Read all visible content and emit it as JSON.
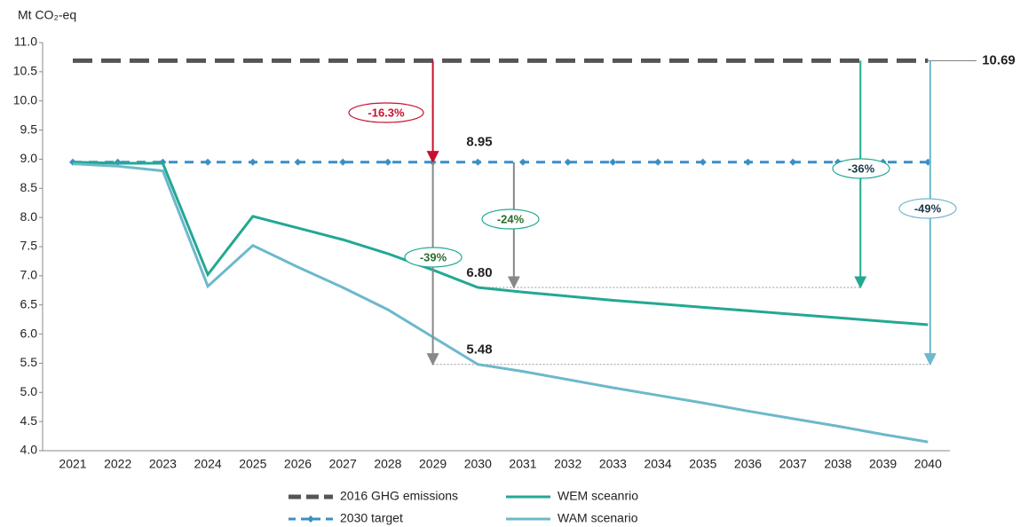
{
  "chart_data": {
    "type": "line",
    "y_label": "Mt CO₂-eq",
    "categories": [
      "2021",
      "2022",
      "2023",
      "2024",
      "2025",
      "2026",
      "2027",
      "2028",
      "2029",
      "2030",
      "2031",
      "2032",
      "2033",
      "2034",
      "2035",
      "2036",
      "2037",
      "2038",
      "2039",
      "2040"
    ],
    "ylim": [
      4,
      11
    ],
    "yticks": [
      {
        "value": 4,
        "label": "4.0"
      },
      4.5,
      {
        "value": 5,
        "label": "5.0"
      },
      5.5,
      {
        "value": 6,
        "label": "6.0"
      },
      6.5,
      {
        "value": 7,
        "label": "7.0"
      },
      7.5,
      {
        "value": 8,
        "label": "8.0"
      },
      8.5,
      {
        "value": 9,
        "label": "9.0"
      },
      9.5,
      {
        "value": 10,
        "label": "10.0"
      },
      10.5,
      {
        "value": 11,
        "label": "11.0"
      }
    ],
    "series": [
      {
        "name": "2016 GHG emissions",
        "color": "#555555",
        "dash": "long",
        "values": [
          10.69,
          10.69,
          10.69,
          10.69,
          10.69,
          10.69,
          10.69,
          10.69,
          10.69,
          10.69,
          10.69,
          10.69,
          10.69,
          10.69,
          10.69,
          10.69,
          10.69,
          10.69,
          10.69,
          10.69
        ]
      },
      {
        "name": "2030 target",
        "color": "#3a8fc4",
        "dash": "short",
        "marker": "diamond",
        "values": [
          8.95,
          8.95,
          8.95,
          8.95,
          8.95,
          8.95,
          8.95,
          8.95,
          8.95,
          8.95,
          8.95,
          8.95,
          8.95,
          8.95,
          8.95,
          8.95,
          8.95,
          8.95,
          8.95,
          8.95
        ]
      },
      {
        "name": "WEM sceanrio",
        "color": "#23a892",
        "values": [
          8.95,
          8.93,
          8.93,
          7.02,
          8.02,
          7.82,
          7.62,
          7.38,
          7.1,
          6.8,
          6.72,
          6.65,
          6.58,
          6.52,
          6.46,
          6.4,
          6.34,
          6.28,
          6.22,
          6.16
        ]
      },
      {
        "name": "WAM scenario",
        "color": "#6db8cc",
        "values": [
          8.92,
          8.88,
          8.8,
          6.82,
          7.52,
          7.15,
          6.8,
          6.42,
          5.95,
          5.48,
          5.36,
          5.22,
          5.08,
          4.95,
          4.82,
          4.68,
          4.55,
          4.42,
          4.28,
          4.15
        ]
      }
    ],
    "value_labels": [
      "10.69",
      "8.95",
      "6.80",
      "5.48"
    ],
    "annotations": [
      {
        "text": "-16.3%",
        "color": "#c8102e"
      },
      {
        "text": "-39%",
        "color": "#2e6b2e"
      },
      {
        "text": "-24%",
        "color": "#2e6b2e"
      },
      {
        "text": "-36%",
        "color": "#1a3a4a"
      },
      {
        "text": "-49%",
        "color": "#1a3a4a"
      }
    ]
  }
}
